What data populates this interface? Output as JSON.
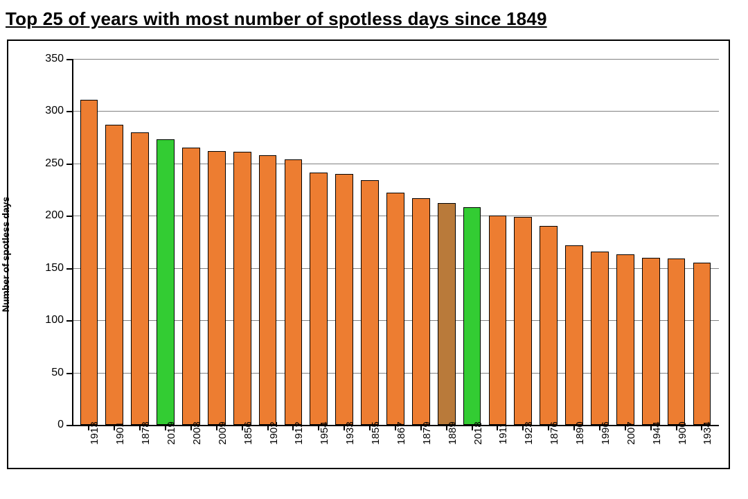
{
  "title": "Top 25 of years with most number of spotless days since 1849",
  "chart": {
    "type": "bar",
    "ylabel": "Number of spotless days",
    "ylim": [
      0,
      350
    ],
    "ytick_step": 50,
    "grid_color": "#808080",
    "axis_color": "#000000",
    "background_color": "#ffffff",
    "bar_border_color": "#000000",
    "bar_width": 0.7,
    "label_fontsize": 15,
    "tick_fontsize": 16,
    "ylabel_fontsize": 14,
    "title_fontsize": 26,
    "default_bar_color": "#ed7d31",
    "highlight_bar_color": "#33cc33",
    "alt_bar_color": "#b97a3a",
    "categories": [
      "1913",
      "1901",
      "1878",
      "2019",
      "2008",
      "2009",
      "1856",
      "1902",
      "1912",
      "1954",
      "1933",
      "1855",
      "1867",
      "1879",
      "1889",
      "2018",
      "1911",
      "1923",
      "1876",
      "1890",
      "1996",
      "2007",
      "1944",
      "1900",
      "1934"
    ],
    "values": [
      311,
      287,
      280,
      273,
      265,
      262,
      261,
      258,
      254,
      241,
      240,
      234,
      222,
      217,
      212,
      208,
      200,
      199,
      190,
      172,
      166,
      163,
      160,
      159,
      155
    ],
    "bar_colors": [
      "#ed7d31",
      "#ed7d31",
      "#ed7d31",
      "#33cc33",
      "#ed7d31",
      "#ed7d31",
      "#ed7d31",
      "#ed7d31",
      "#ed7d31",
      "#ed7d31",
      "#ed7d31",
      "#ed7d31",
      "#ed7d31",
      "#ed7d31",
      "#b97a3a",
      "#33cc33",
      "#ed7d31",
      "#ed7d31",
      "#ed7d31",
      "#ed7d31",
      "#ed7d31",
      "#ed7d31",
      "#ed7d31",
      "#ed7d31",
      "#ed7d31"
    ]
  }
}
